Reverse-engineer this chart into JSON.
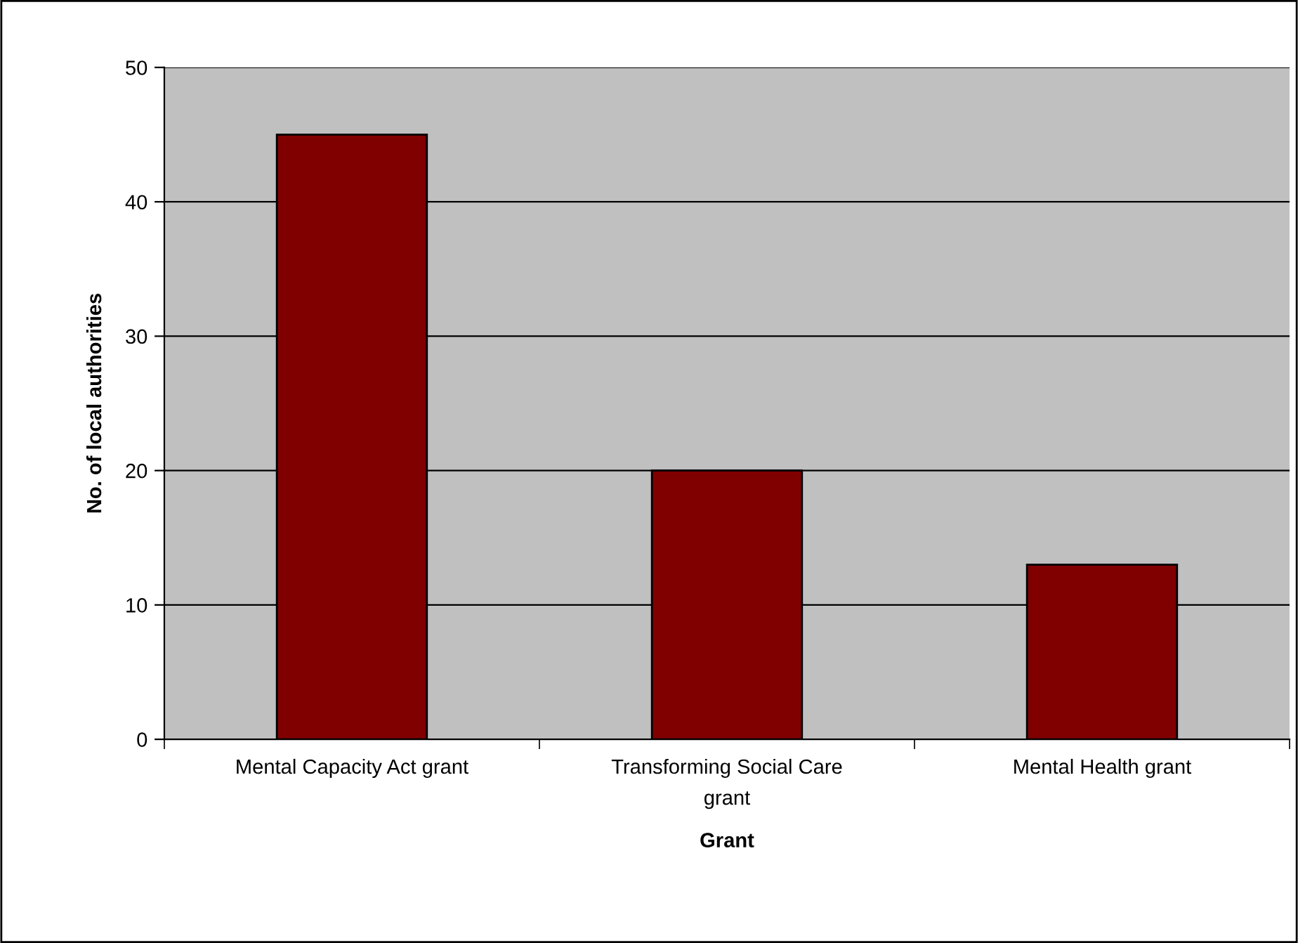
{
  "chart_data": {
    "type": "bar",
    "xlabel": "Grant",
    "ylabel": "No. of local authorities",
    "categories": [
      "Mental Capacity Act grant",
      "Transforming Social Care\ngrant",
      "Mental Health grant"
    ],
    "values": [
      45,
      20,
      13
    ],
    "color": "#800000",
    "ylim": [
      0,
      50
    ],
    "yticks": [
      0,
      10,
      20,
      30,
      40,
      50
    ],
    "grid": "y",
    "legend": false
  }
}
